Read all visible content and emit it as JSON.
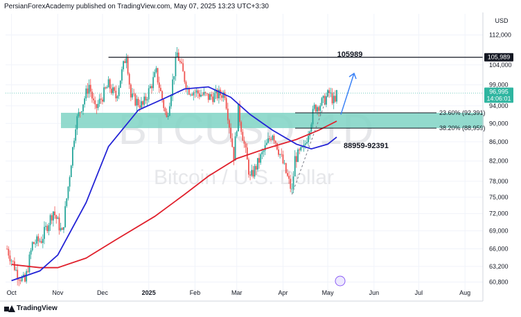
{
  "header": {
    "publisher_line": "PersianForexAcademy published on TradingView.com, May 07, 2025 13:23 UTC+3:30"
  },
  "footer": {
    "brand": "TradingView"
  },
  "chart_data": {
    "type": "candlestick",
    "symbol_watermark": "BTCUSD, 1D",
    "description_watermark": "Bitcoin / U.S. Dollar",
    "currency": "USD",
    "y_ticks": [
      "112,000",
      "104,000",
      "99,000",
      "94,000",
      "90,000",
      "86,000",
      "82,000",
      "78,000",
      "75,000",
      "72,000",
      "69,000",
      "66,000",
      "63,200",
      "60,800"
    ],
    "y_tick_values": [
      112000,
      104000,
      99000,
      94000,
      90000,
      86000,
      82000,
      78000,
      75000,
      72000,
      69000,
      66000,
      63200,
      60800
    ],
    "x_ticks": [
      "Oct",
      "Nov",
      "Dec",
      "2025",
      "Feb",
      "Mar",
      "Apr",
      "May",
      "Jun",
      "Jul",
      "Aug"
    ],
    "x_tick_dates": [
      "2024-10-01",
      "2024-11-01",
      "2024-12-01",
      "2025-01-01",
      "2025-02-01",
      "2025-03-01",
      "2025-04-01",
      "2025-05-01",
      "2025-06-01",
      "2025-07-01",
      "2025-08-01"
    ],
    "y_scale": "log",
    "last_price": {
      "label": "96,995",
      "countdown": "14:06:01",
      "value": 96995
    },
    "resistance": {
      "label": "105,989",
      "value": 105989,
      "from_date": "2024-12-05"
    },
    "target_label": "105989",
    "zone_label": "88959-92391",
    "fib_levels": [
      {
        "label": "23.60% (92,391)",
        "value": 92391
      },
      {
        "label": "38.20% (88,959)",
        "value": 88959
      }
    ],
    "zone": {
      "low": 88959,
      "high": 92391
    },
    "colors": {
      "up": "#26a69a",
      "down": "#ef5350",
      "ma_fast": "#2424d6",
      "ma_slow": "#e0202c",
      "zone": "#7fd3c4",
      "arrow": "#3b82f6",
      "last_price_badge": "#2fb5a0"
    },
    "ohlc_path": [
      [
        "2024-09-28",
        66000
      ],
      [
        "2024-10-05",
        62000
      ],
      [
        "2024-10-10",
        60800
      ],
      [
        "2024-10-15",
        66800
      ],
      [
        "2024-10-21",
        67500
      ],
      [
        "2024-10-29",
        72500
      ],
      [
        "2024-11-04",
        68500
      ],
      [
        "2024-11-08",
        77000
      ],
      [
        "2024-11-13",
        90000
      ],
      [
        "2024-11-22",
        99000
      ],
      [
        "2024-11-26",
        93000
      ],
      [
        "2024-12-05",
        99000
      ],
      [
        "2024-12-10",
        96000
      ],
      [
        "2024-12-17",
        107000
      ],
      [
        "2024-12-20",
        96000
      ],
      [
        "2024-12-28",
        94000
      ],
      [
        "2025-01-06",
        102000
      ],
      [
        "2025-01-13",
        91000
      ],
      [
        "2025-01-20",
        107000
      ],
      [
        "2025-01-27",
        98000
      ],
      [
        "2025-02-03",
        97000
      ],
      [
        "2025-02-10",
        96000
      ],
      [
        "2025-02-21",
        97000
      ],
      [
        "2025-02-27",
        83000
      ],
      [
        "2025-03-02",
        93000
      ],
      [
        "2025-03-10",
        78500
      ],
      [
        "2025-03-19",
        84000
      ],
      [
        "2025-03-25",
        88000
      ],
      [
        "2025-03-31",
        82500
      ],
      [
        "2025-04-07",
        76000
      ],
      [
        "2025-04-09",
        82500
      ],
      [
        "2025-04-15",
        84500
      ],
      [
        "2025-04-22",
        93500
      ],
      [
        "2025-04-28",
        95000
      ],
      [
        "2025-05-02",
        97000
      ],
      [
        "2025-05-06",
        94500
      ],
      [
        "2025-05-07",
        96995
      ]
    ],
    "ma_fast": [
      [
        "2024-10-01",
        61000
      ],
      [
        "2024-10-20",
        62500
      ],
      [
        "2024-11-01",
        65000
      ],
      [
        "2024-11-20",
        74000
      ],
      [
        "2024-12-05",
        85000
      ],
      [
        "2024-12-25",
        93000
      ],
      [
        "2025-01-10",
        95500
      ],
      [
        "2025-01-25",
        98000
      ],
      [
        "2025-02-10",
        98500
      ],
      [
        "2025-02-25",
        96000
      ],
      [
        "2025-03-10",
        92000
      ],
      [
        "2025-03-25",
        88500
      ],
      [
        "2025-04-10",
        85500
      ],
      [
        "2025-04-20",
        84500
      ],
      [
        "2025-05-01",
        85500
      ],
      [
        "2025-05-07",
        87000
      ]
    ],
    "ma_slow": [
      [
        "2024-10-01",
        63500
      ],
      [
        "2024-10-20",
        63000
      ],
      [
        "2024-11-01",
        63000
      ],
      [
        "2024-11-20",
        64500
      ],
      [
        "2024-12-10",
        67500
      ],
      [
        "2025-01-05",
        71500
      ],
      [
        "2025-01-25",
        75500
      ],
      [
        "2025-02-10",
        79000
      ],
      [
        "2025-03-01",
        82500
      ],
      [
        "2025-03-20",
        84500
      ],
      [
        "2025-04-10",
        86500
      ],
      [
        "2025-04-25",
        88500
      ],
      [
        "2025-05-07",
        90500
      ]
    ]
  }
}
